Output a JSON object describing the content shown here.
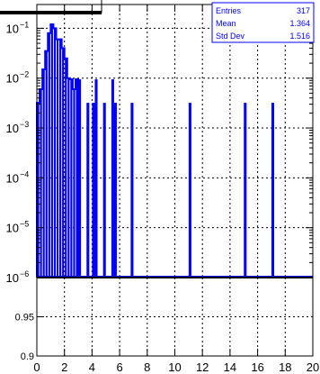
{
  "chart_data": [
    {
      "type": "bar",
      "panel": "top",
      "title": "",
      "xlabel": "",
      "ylabel": "",
      "log_y": true,
      "xlim": [
        0,
        20
      ],
      "ylim": [
        1e-06,
        0.3
      ],
      "grid": true,
      "series_color": "#0000ff",
      "x_ticks": [
        0,
        2,
        4,
        6,
        8,
        10,
        12,
        14,
        16,
        18,
        20
      ],
      "y_ticks": [
        {
          "value": 1e-06,
          "base": "10",
          "exp": "−6"
        },
        {
          "value": 1e-05,
          "base": "10",
          "exp": "−5"
        },
        {
          "value": 0.0001,
          "base": "10",
          "exp": "−4"
        },
        {
          "value": 0.001,
          "base": "10",
          "exp": "−3"
        },
        {
          "value": 0.01,
          "base": "10",
          "exp": "−2"
        },
        {
          "value": 0.1,
          "base": "10",
          "exp": "−1"
        }
      ],
      "bin_width": 0.2,
      "curve": [
        {
          "x": 0.0,
          "y": 0.0032
        },
        {
          "x": 0.2,
          "y": 0.006
        },
        {
          "x": 0.4,
          "y": 0.015
        },
        {
          "x": 0.6,
          "y": 0.035
        },
        {
          "x": 0.8,
          "y": 0.08
        },
        {
          "x": 1.0,
          "y": 0.12
        },
        {
          "x": 1.2,
          "y": 0.1
        },
        {
          "x": 1.4,
          "y": 0.06
        },
        {
          "x": 1.6,
          "y": 0.06
        },
        {
          "x": 1.8,
          "y": 0.04
        },
        {
          "x": 2.0,
          "y": 0.025
        },
        {
          "x": 2.2,
          "y": 0.01
        },
        {
          "x": 2.4,
          "y": 0.0095
        },
        {
          "x": 2.6,
          "y": 0.006
        },
        {
          "x": 2.8,
          "y": 0.0095
        }
      ],
      "spikes": [
        {
          "x": 3.0,
          "y": 0.0095
        },
        {
          "x": 3.6,
          "y": 0.0032
        },
        {
          "x": 4.0,
          "y": 0.0032
        },
        {
          "x": 4.2,
          "y": 0.0095
        },
        {
          "x": 4.8,
          "y": 0.0032
        },
        {
          "x": 5.4,
          "y": 0.0095
        },
        {
          "x": 5.6,
          "y": 0.0032
        },
        {
          "x": 6.8,
          "y": 0.0032
        },
        {
          "x": 11.0,
          "y": 0.0032
        },
        {
          "x": 15.0,
          "y": 0.0032
        },
        {
          "x": 17.0,
          "y": 0.0032
        }
      ],
      "stats": {
        "rows": [
          {
            "label": "Entries",
            "value": "317"
          },
          {
            "label": "Mean",
            "value": "1.364"
          },
          {
            "label": "Std Dev",
            "value": "1.516"
          }
        ]
      }
    },
    {
      "type": "line",
      "panel": "bottom",
      "title": "",
      "xlabel": "",
      "ylabel": "",
      "xlim": [
        0,
        20
      ],
      "ylim": [
        0.9,
        1.0
      ],
      "grid": true,
      "x_ticks": [
        0,
        2,
        4,
        6,
        8,
        10,
        12,
        14,
        16,
        18,
        20
      ],
      "y_ticks": [
        0.9,
        0.95
      ],
      "y_tick_labels": [
        "0.9",
        "0.95"
      ],
      "series": [
        {
          "x": [
            0,
            20
          ],
          "y": [
            1.0,
            1.0
          ]
        }
      ]
    }
  ]
}
